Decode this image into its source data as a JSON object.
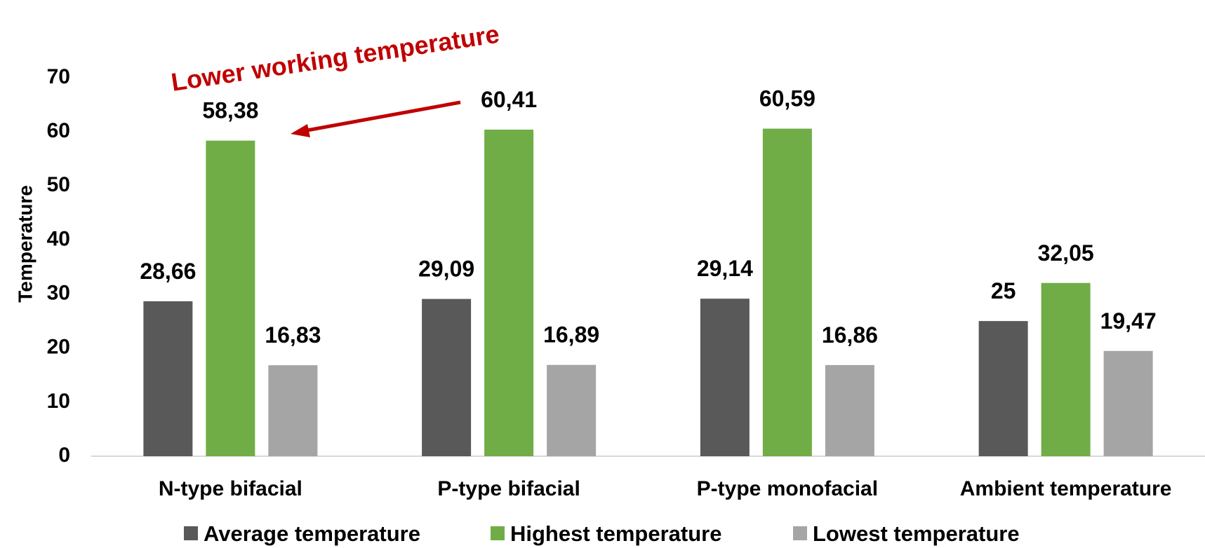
{
  "chart_data": {
    "type": "bar",
    "categories": [
      "N-type bifacial",
      "P-type bifacial",
      "P-type monofacial",
      "Ambient temperature"
    ],
    "series": [
      {
        "name": "Average temperature",
        "values": [
          28.66,
          29.09,
          29.14,
          25
        ],
        "labels": [
          "28,66",
          "29,09",
          "29,14",
          "25"
        ],
        "color": "#595959"
      },
      {
        "name": "Highest temperature",
        "values": [
          58.38,
          60.41,
          60.59,
          32.05
        ],
        "labels": [
          "58,38",
          "60,41",
          "60,59",
          "32,05"
        ],
        "color": "#70AD47"
      },
      {
        "name": "Lowest temperature",
        "values": [
          16.83,
          16.89,
          16.86,
          19.47
        ],
        "labels": [
          "16,83",
          "16,89",
          "16,86",
          "19,47"
        ],
        "color": "#A5A5A5"
      }
    ],
    "ylabel": "Temperature",
    "xlabel": "",
    "ylim": [
      0,
      70
    ],
    "yticks": [
      0,
      10,
      20,
      30,
      40,
      50,
      60,
      70
    ],
    "grid": false,
    "legend": "bottom",
    "annotation": {
      "text": "Lower working temperature",
      "color": "#C00000",
      "points_to": "N-type bifacial / Highest temperature"
    }
  }
}
